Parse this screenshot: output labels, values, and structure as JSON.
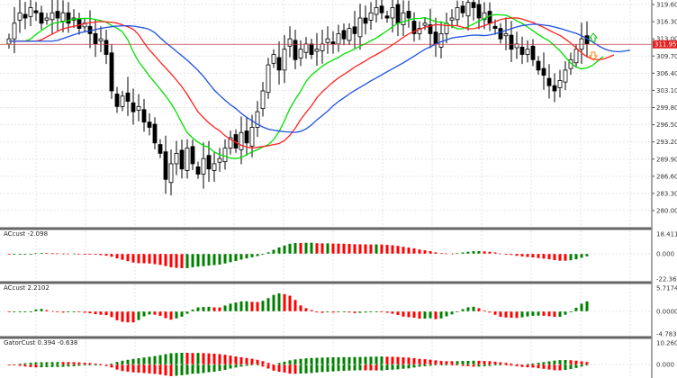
{
  "chart_data": {
    "type": "candlestick",
    "price_axis_ticks": [
      "319.60",
      "316.30",
      "313.00",
      "309.70",
      "306.40",
      "303.10",
      "299.80",
      "296.50",
      "293.20",
      "289.90",
      "286.60",
      "283.30",
      "280.00"
    ],
    "current_price": "311.95",
    "ylim": [
      278.5,
      321
    ],
    "grid": true,
    "closes": [
      313,
      316,
      318,
      317,
      319,
      318,
      316,
      317,
      318,
      317,
      318,
      316,
      317,
      315,
      316,
      314,
      312,
      313,
      310,
      303,
      300,
      302,
      301,
      299,
      300,
      297,
      296,
      293,
      291,
      286,
      289,
      291,
      288,
      292,
      289,
      287,
      290,
      288,
      289,
      290,
      292,
      294,
      292,
      295,
      293,
      296,
      299,
      303,
      308,
      310,
      307,
      311,
      313,
      309,
      311,
      312,
      310,
      311,
      312,
      313,
      312,
      314,
      313,
      315,
      314,
      317,
      316,
      318,
      319,
      318,
      317,
      319,
      316,
      318,
      317,
      314,
      315,
      316,
      314,
      312,
      314,
      316,
      317,
      319,
      318,
      320,
      319,
      317,
      318,
      316,
      315,
      313,
      314,
      311,
      312,
      310,
      311,
      309,
      307,
      306,
      304,
      303,
      305,
      307,
      309,
      311,
      313,
      312
    ],
    "ma_colors": {
      "fast": "#00e000",
      "mid": "#ff2020",
      "slow": "#2050e0"
    },
    "bull_color": "#008000",
    "bear_color": "#ff0000",
    "panels": [
      {
        "label": "ACcust -2.098",
        "ticks": [
          "18.411",
          "0.000",
          "-22.369"
        ]
      },
      {
        "label": "ACcust 2.2102",
        "ticks": [
          "5.7174",
          "0.0000",
          "-4.7832"
        ]
      },
      {
        "label": "GatorCust 0.394 -0.638",
        "ticks": [
          "10.260",
          "0.000"
        ]
      }
    ]
  }
}
